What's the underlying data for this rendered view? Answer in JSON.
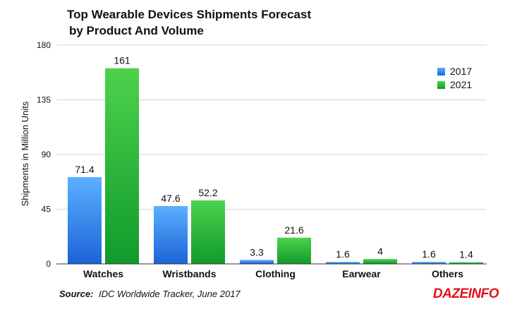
{
  "chart_data": {
    "type": "bar",
    "title_line1": "Top Wearable Devices Shipments Forecast",
    "title_line2": "by Product And Volume",
    "categories": [
      "Watches",
      "Wristbands",
      "Clothing",
      "Earwear",
      "Others"
    ],
    "series": [
      {
        "name": "2017",
        "values": [
          71.4,
          47.6,
          3.3,
          1.6,
          1.6
        ],
        "color": "#2a7fe6"
      },
      {
        "name": "2021",
        "values": [
          161,
          52.2,
          21.6,
          4,
          1.4
        ],
        "color": "#1db63c"
      }
    ],
    "data_labels": [
      [
        "71.4",
        "47.6",
        "3.3",
        "1.6",
        "1.6"
      ],
      [
        "161",
        "52.2",
        "21.6",
        "4",
        "1.4"
      ]
    ],
    "ylabel": "Shipments in Million Units",
    "yticks": [
      "0",
      "45",
      "90",
      "135",
      "180"
    ],
    "ylim": [
      0,
      180
    ],
    "grid": true,
    "legend_position": "top-right"
  },
  "source": {
    "label": "Source:",
    "text": "IDC Worldwide Tracker, June 2017"
  },
  "logo": {
    "text": "DAZEINFO"
  }
}
